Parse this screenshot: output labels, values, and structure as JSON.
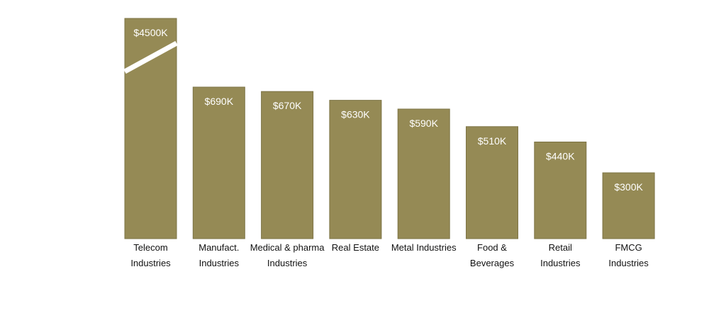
{
  "chart_data": {
    "type": "bar",
    "categories": [
      "Telecom Industries",
      "Manufact. Industries",
      "Medical & pharma Industries",
      "Real Estate",
      "Metal Industries",
      "Food & Beverages",
      "Retail Industries",
      "FMCG Industries"
    ],
    "category_lines": [
      [
        "Telecom",
        "Industries"
      ],
      [
        "Manufact.",
        "Industries"
      ],
      [
        "Medical & pharma",
        "Industries"
      ],
      [
        "Real Estate"
      ],
      [
        "Metal Industries"
      ],
      [
        "Food &",
        "Beverages"
      ],
      [
        "Retail",
        "Industries"
      ],
      [
        "FMCG",
        "Industries"
      ]
    ],
    "values": [
      4500,
      690,
      670,
      630,
      590,
      510,
      440,
      300
    ],
    "data_labels": [
      "$4500K",
      "$690K",
      "$670K",
      "$630K",
      "$590K",
      "$510K",
      "$440K",
      "$300K"
    ],
    "unit": "K",
    "axis_break": "first bar broken (value exceeds plotted scale)",
    "bar_color": "#958a55",
    "break_color": "#ffffff",
    "grid": false,
    "legend": "none"
  }
}
